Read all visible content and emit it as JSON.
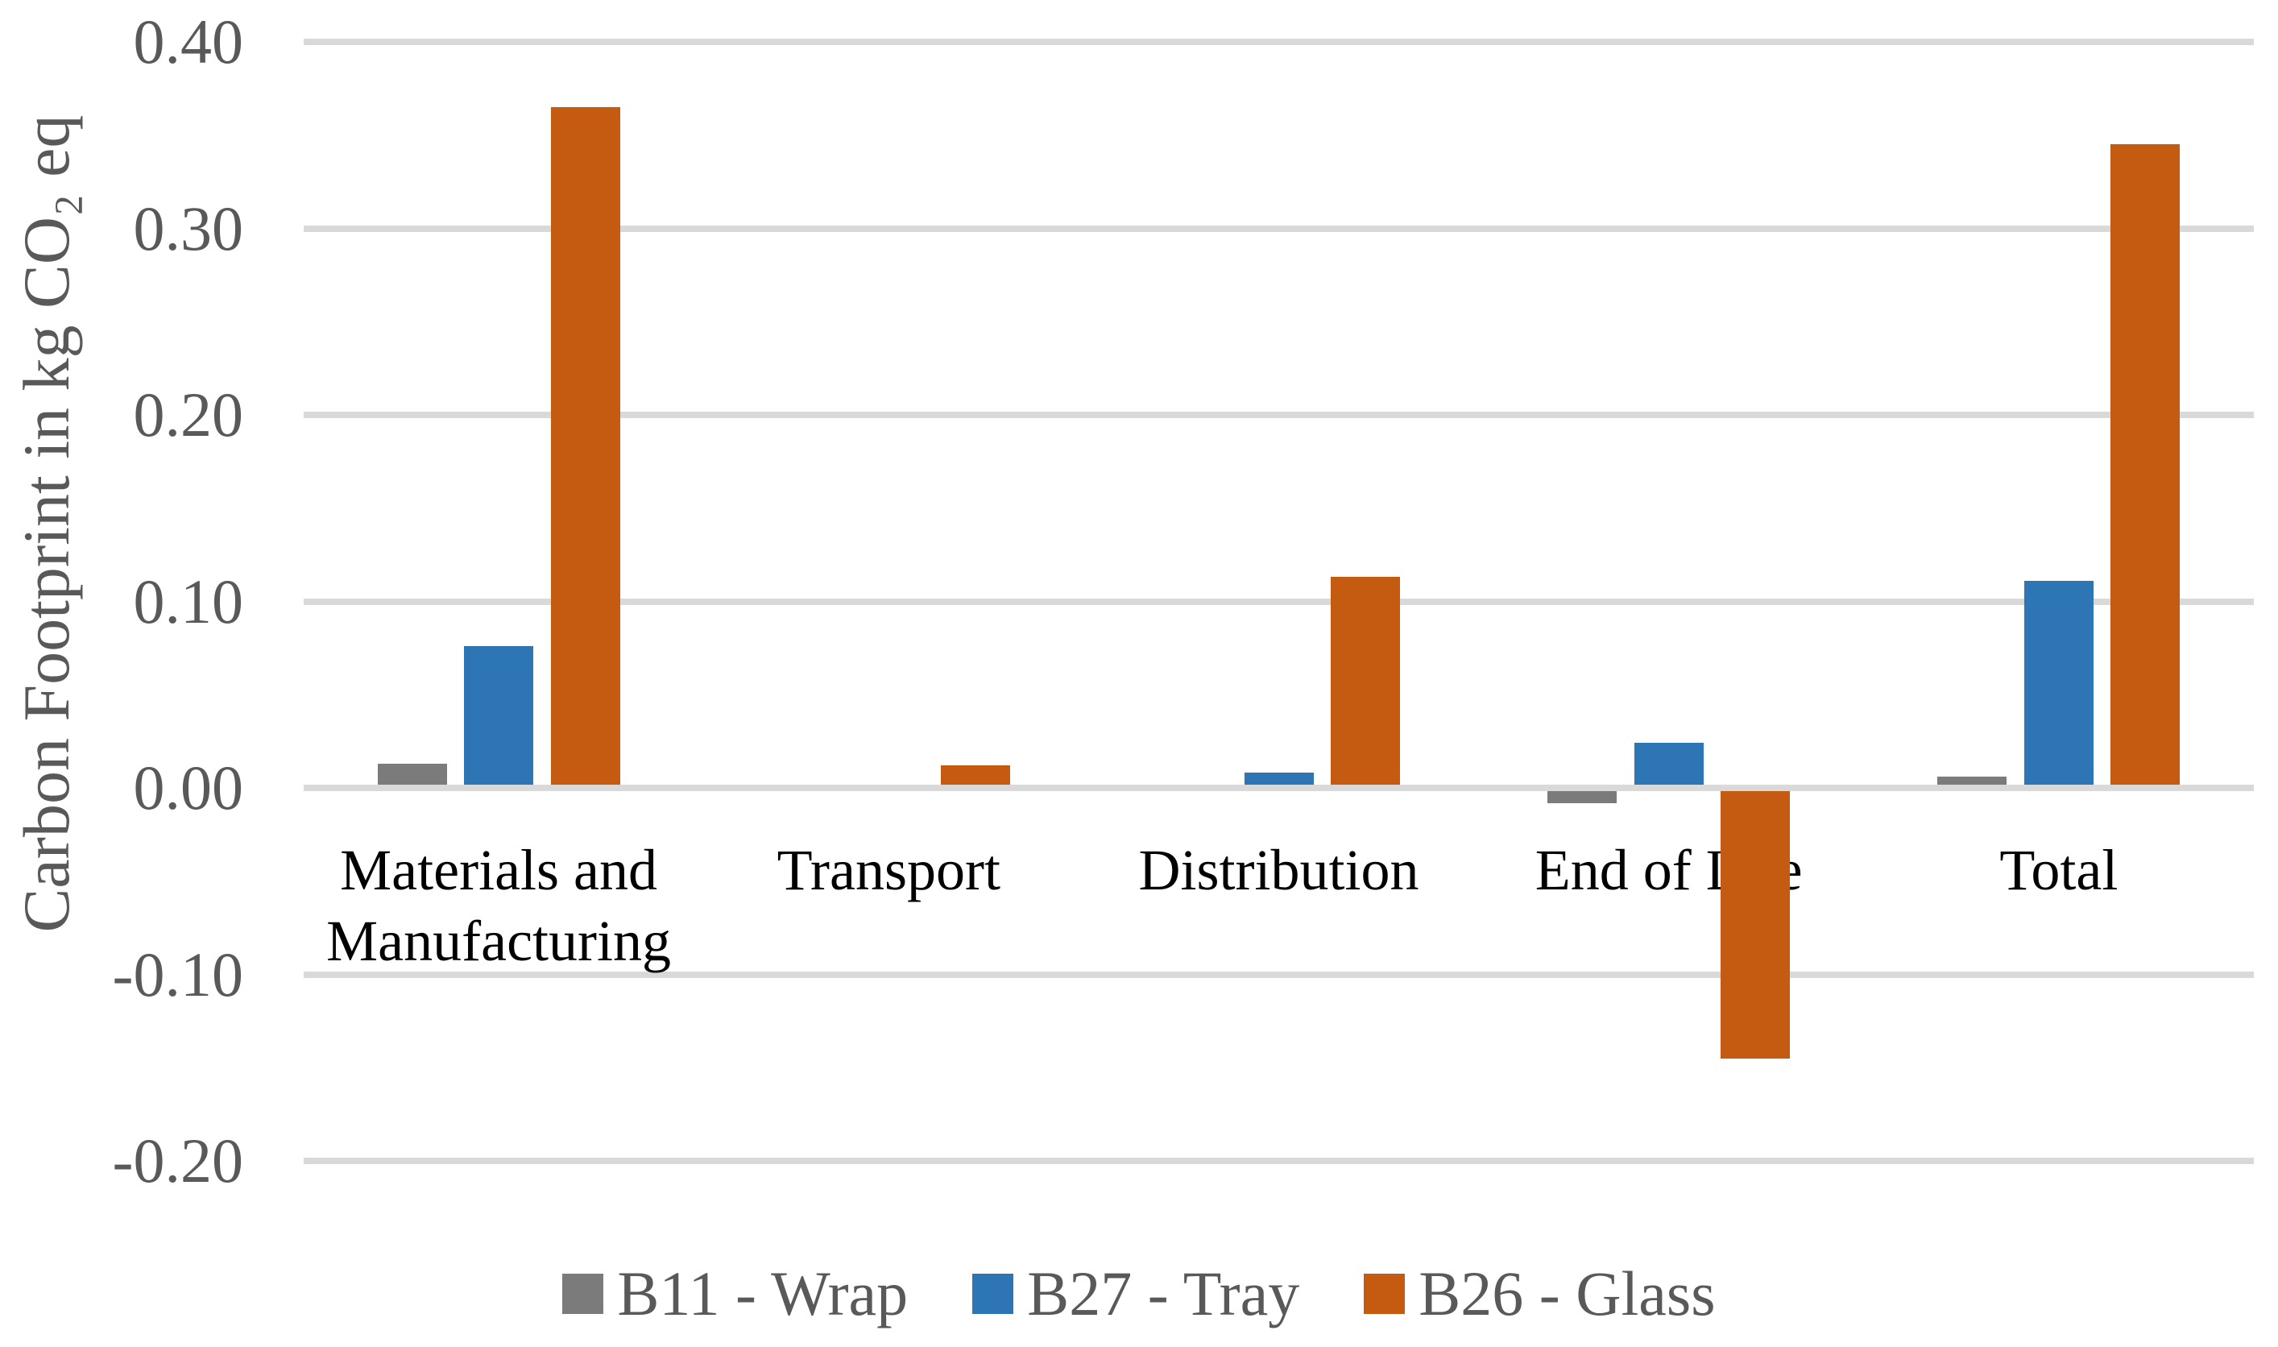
{
  "figure": {
    "background_color": "#FFFFFF",
    "text_color_axis": "#595959",
    "text_color_categories": "#000000",
    "gridline_color": "#D9D9D9"
  },
  "y_axis": {
    "title": "Carbon Footprint in kg CO₂ eq",
    "tick_labels": [
      "0.40",
      "0.30",
      "0.20",
      "0.10",
      "0.00",
      "-0.10",
      "-0.20"
    ]
  },
  "legend": {
    "items": [
      {
        "label": "B11 - Wrap",
        "color": "#7B7B7B"
      },
      {
        "label": "B27 - Tray",
        "color": "#2E75B6"
      },
      {
        "label": "B26 - Glass",
        "color": "#C55A11"
      }
    ]
  },
  "chart_data": {
    "type": "bar",
    "title": "",
    "xlabel": "",
    "ylabel": "Carbon Footprint in kg CO₂ eq",
    "ylim": [
      -0.2,
      0.4
    ],
    "ytick_step": 0.1,
    "grid": true,
    "legend_position": "bottom",
    "categories": [
      "Materials and Manufacturing",
      "Transport",
      "Distribution",
      "End of Life",
      "Total"
    ],
    "series": [
      {
        "name": "B11 - Wrap",
        "color": "#7B7B7B",
        "values": [
          0.013,
          0.0,
          0.0,
          -0.008,
          0.006
        ]
      },
      {
        "name": "B27 - Tray",
        "color": "#2E75B6",
        "values": [
          0.076,
          0.0,
          0.008,
          0.024,
          0.111
        ]
      },
      {
        "name": "B26 - Glass",
        "color": "#C55A11",
        "values": [
          0.365,
          0.012,
          0.113,
          -0.145,
          0.345
        ]
      }
    ]
  }
}
